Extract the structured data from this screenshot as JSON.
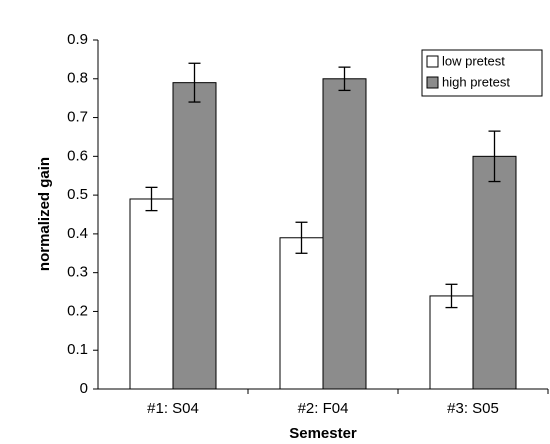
{
  "chart_data": {
    "type": "bar",
    "x_label": "Semester",
    "y_label": "normalized gain",
    "categories": [
      "#1: S04",
      "#2: F04",
      "#3: S05"
    ],
    "series": [
      {
        "name": "low pretest",
        "color": "#ffffff",
        "values": [
          0.49,
          0.39,
          0.24
        ],
        "errors": [
          0.03,
          0.04,
          0.03
        ]
      },
      {
        "name": "high pretest",
        "color": "#8c8c8c",
        "values": [
          0.79,
          0.8,
          0.6
        ],
        "errors": [
          0.05,
          0.03,
          0.065
        ]
      }
    ],
    "ylim": [
      0,
      0.9
    ],
    "yticks": [
      0,
      0.1,
      0.2,
      0.3,
      0.4,
      0.5,
      0.6,
      0.7,
      0.8,
      0.9
    ],
    "legend": "upper-right"
  }
}
